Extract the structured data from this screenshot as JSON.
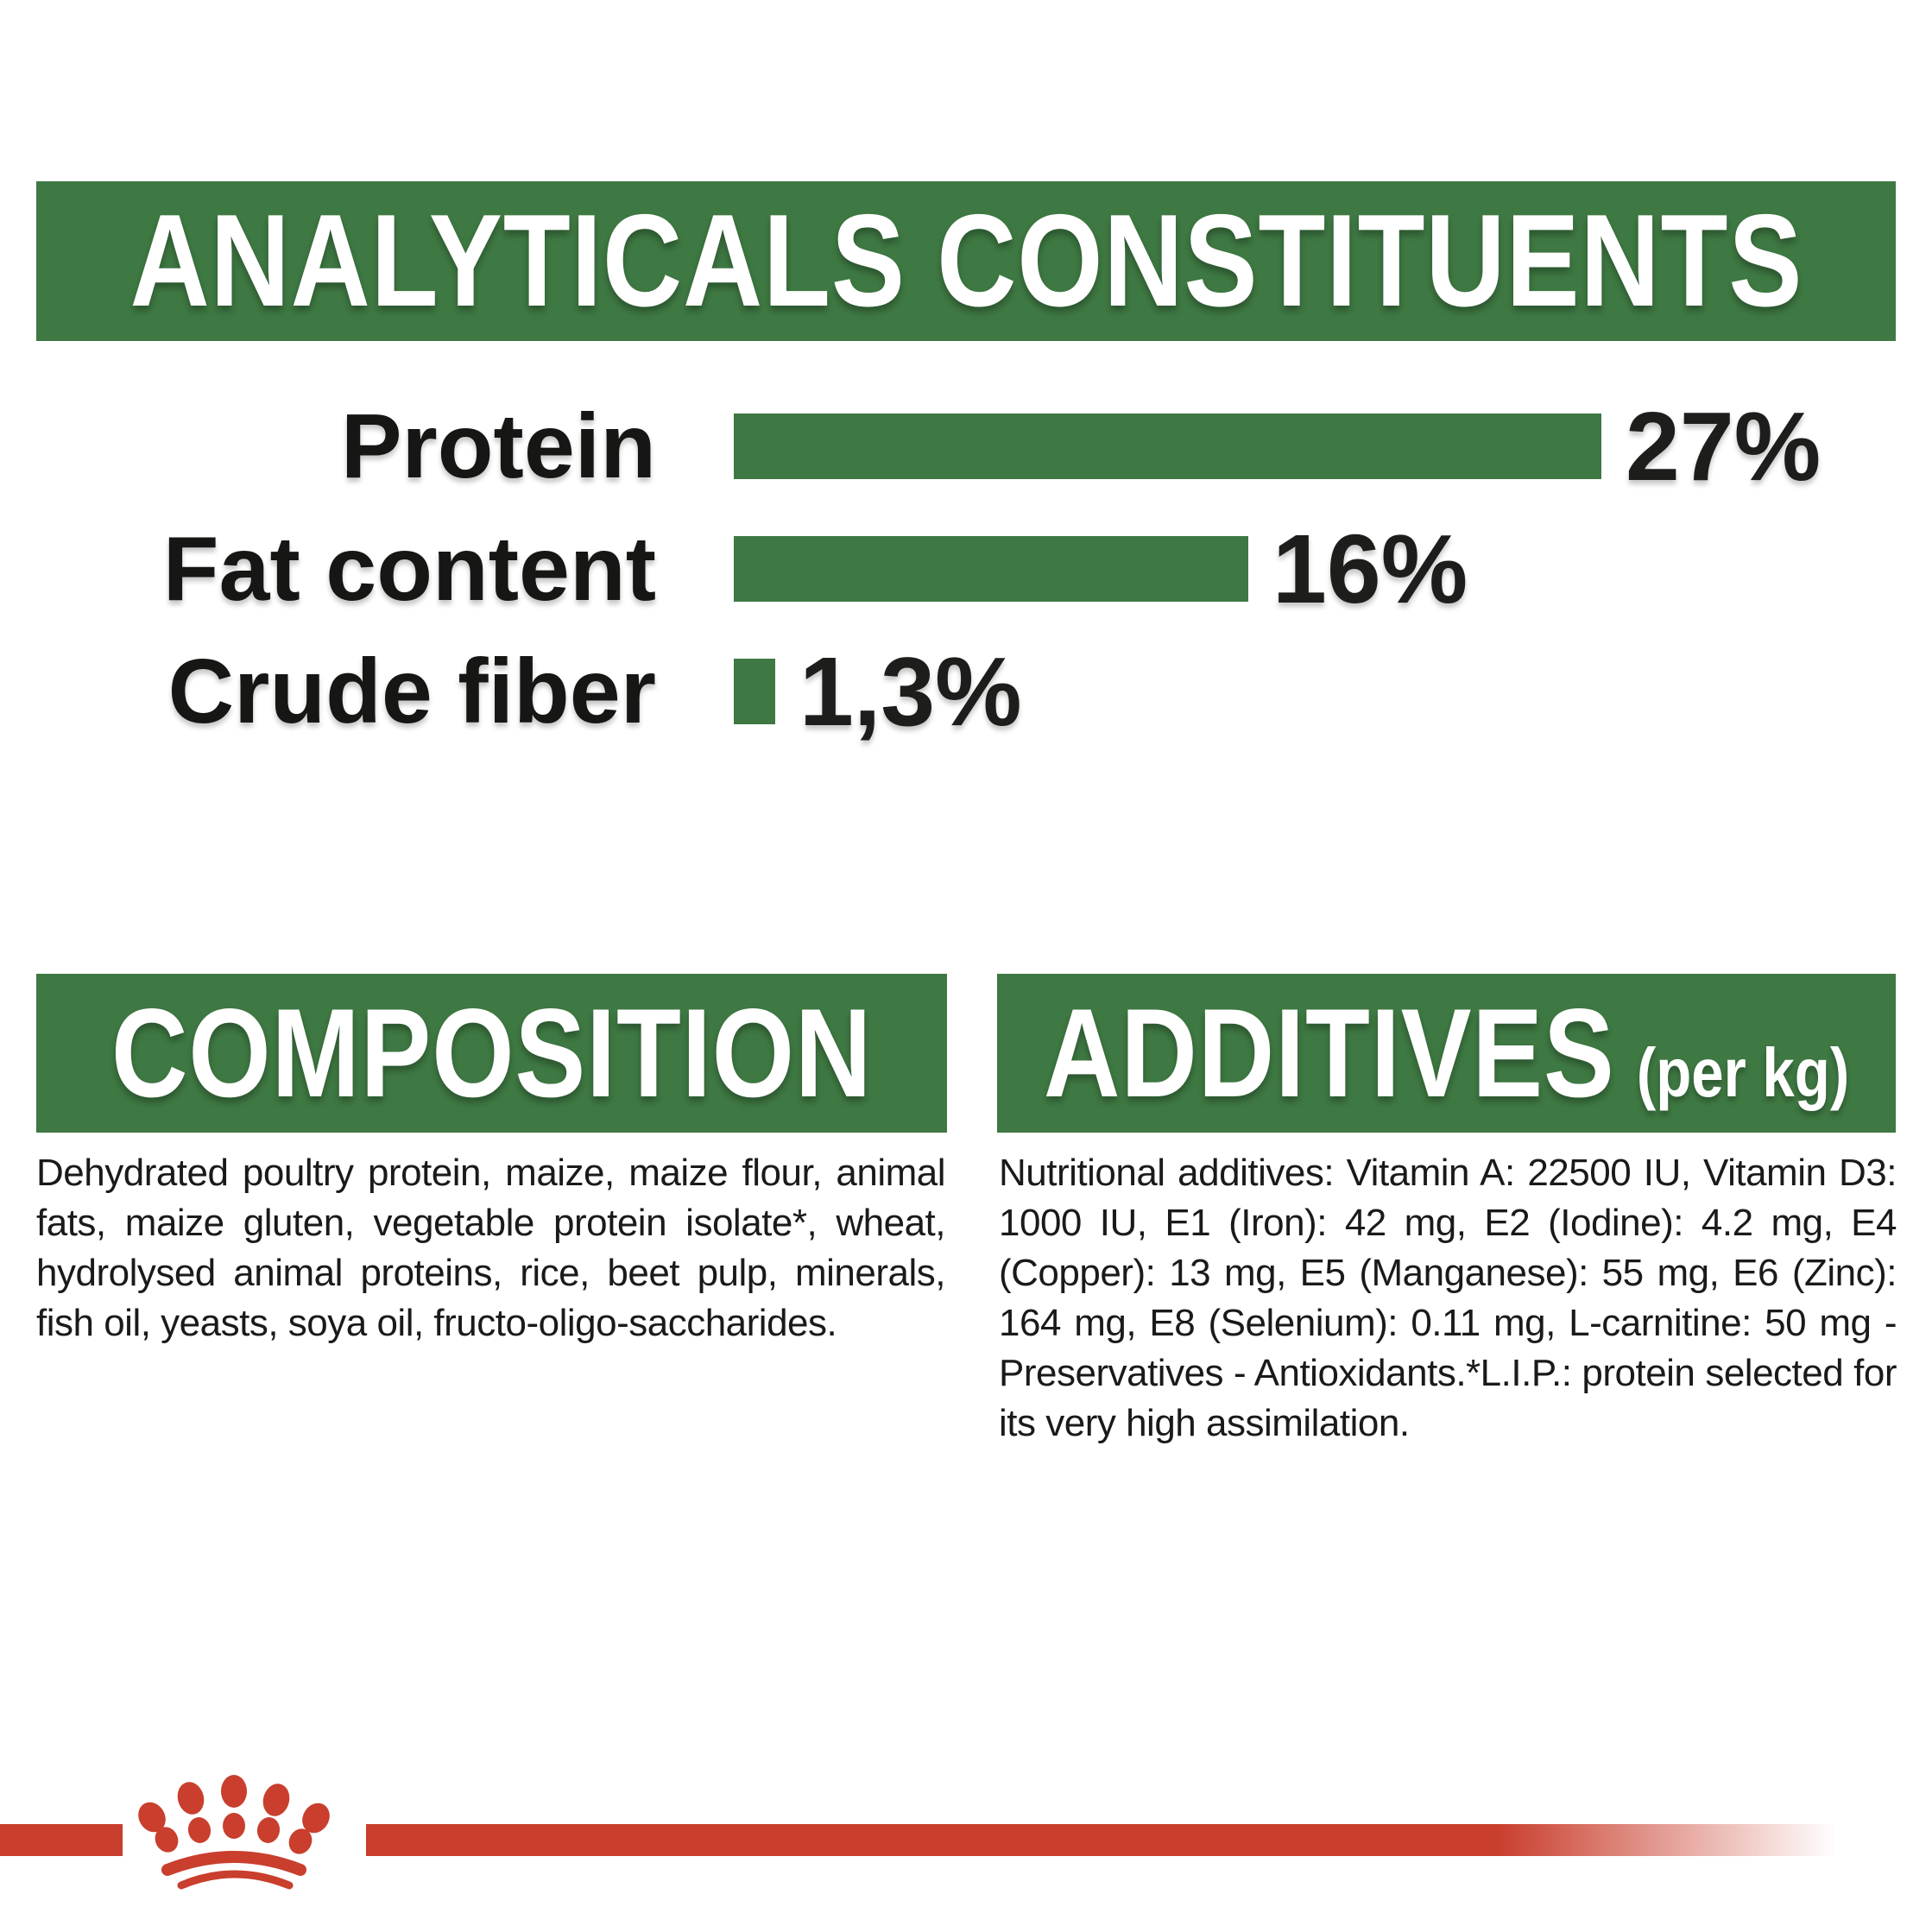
{
  "colors": {
    "green": "#3E7842",
    "red": "#C93E2D",
    "ink": "#1D1D1B"
  },
  "analyticals": {
    "title": "ANALYTICALS CONSTITUENTS"
  },
  "chart_data": {
    "type": "bar",
    "orientation": "horizontal",
    "title": "ANALYTICALS CONSTITUENTS",
    "categories": [
      "Protein",
      "Fat content",
      "Crude fiber"
    ],
    "values": [
      27,
      16,
      1.3
    ],
    "value_labels": [
      "27%",
      "16%",
      "1,3%"
    ],
    "unit": "%",
    "xlim": [
      0,
      27
    ],
    "bar_color": "#3E7842",
    "grid": false,
    "legend": false
  },
  "composition": {
    "title": "COMPOSITION",
    "body": "Dehydrated poultry protein, maize, maize flour, animal fats, maize gluten, vegetable protein isolate*, wheat, hydrolysed animal proteins, rice, beet pulp, minerals, fish oil, yeasts, soya oil, fructo-oligo-saccharides."
  },
  "additives": {
    "title": "ADDITIVES",
    "title_suffix": "(per kg)",
    "body": "Nutritional additives: Vitamin A: 22500 IU, Vitamin D3: 1000 IU, E1 (Iron): 42 mg, E2 (Iodine): 4.2 mg, E4 (Copper): 13 mg, E5 (Manganese): 55 mg, E6 (Zinc): 164 mg, E8 (Selenium): 0.11 mg, L-carnitine: 50 mg - Preservatives - Antioxidants.*L.I.P.: protein selected for its very high assimilation.",
    "body_lead": "Nutritional additives:"
  },
  "footer": {
    "brand_logo": "royal-canin-crown-paw"
  }
}
